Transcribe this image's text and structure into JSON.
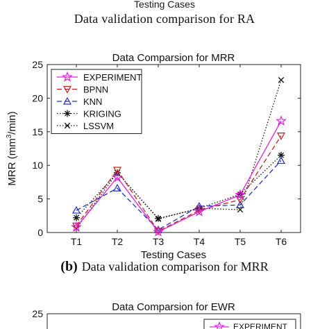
{
  "top_fragment": {
    "axis_label": "Testing Cases",
    "caption": "Data validation comparison for RA"
  },
  "caption_b": {
    "tag": "(b)",
    "text": "Data validation comparison for MRR"
  },
  "colors": {
    "EXPERIMENT": "#e020e0",
    "BPNN": "#c02020",
    "KNN": "#2030c0",
    "KRIGING": "#111111",
    "LSSVM": "#111111"
  },
  "chart_data": [
    {
      "type": "line",
      "title": "Data Comparsion for MRR",
      "xlabel": "Testing Cases",
      "ylabel": "MRR (mm³/min)",
      "categories": [
        "T1",
        "T2",
        "T3",
        "T4",
        "T5",
        "T6"
      ],
      "ylim": [
        0,
        25
      ],
      "yticks": [
        0,
        5,
        10,
        15,
        20,
        25
      ],
      "grid": false,
      "legend_position": "top-left",
      "series": [
        {
          "name": "EXPERIMENT",
          "values": [
            0.8,
            8.2,
            0.1,
            3.1,
            5.6,
            16.6
          ],
          "marker": "star",
          "line": "solid"
        },
        {
          "name": "BPNN",
          "values": [
            1.0,
            9.3,
            0.2,
            3.3,
            4.9,
            14.4
          ],
          "marker": "triangle-down",
          "line": "dashed"
        },
        {
          "name": "KNN",
          "values": [
            3.3,
            6.6,
            0.4,
            3.9,
            4.1,
            10.7
          ],
          "marker": "triangle-up",
          "line": "dashed"
        },
        {
          "name": "KRIGING",
          "values": [
            2.2,
            8.9,
            2.1,
            3.6,
            5.7,
            11.5
          ],
          "marker": "asterisk",
          "line": "dotted"
        },
        {
          "name": "LSSVM",
          "values": [
            0.6,
            8.9,
            2.0,
            3.6,
            3.4,
            22.7
          ],
          "marker": "x",
          "line": "dotted"
        }
      ]
    },
    {
      "type": "line",
      "title": "Data Comparsion for EWR",
      "ylim_top_tick": 25,
      "legend_first_entry": "EXPERIMENT"
    }
  ]
}
